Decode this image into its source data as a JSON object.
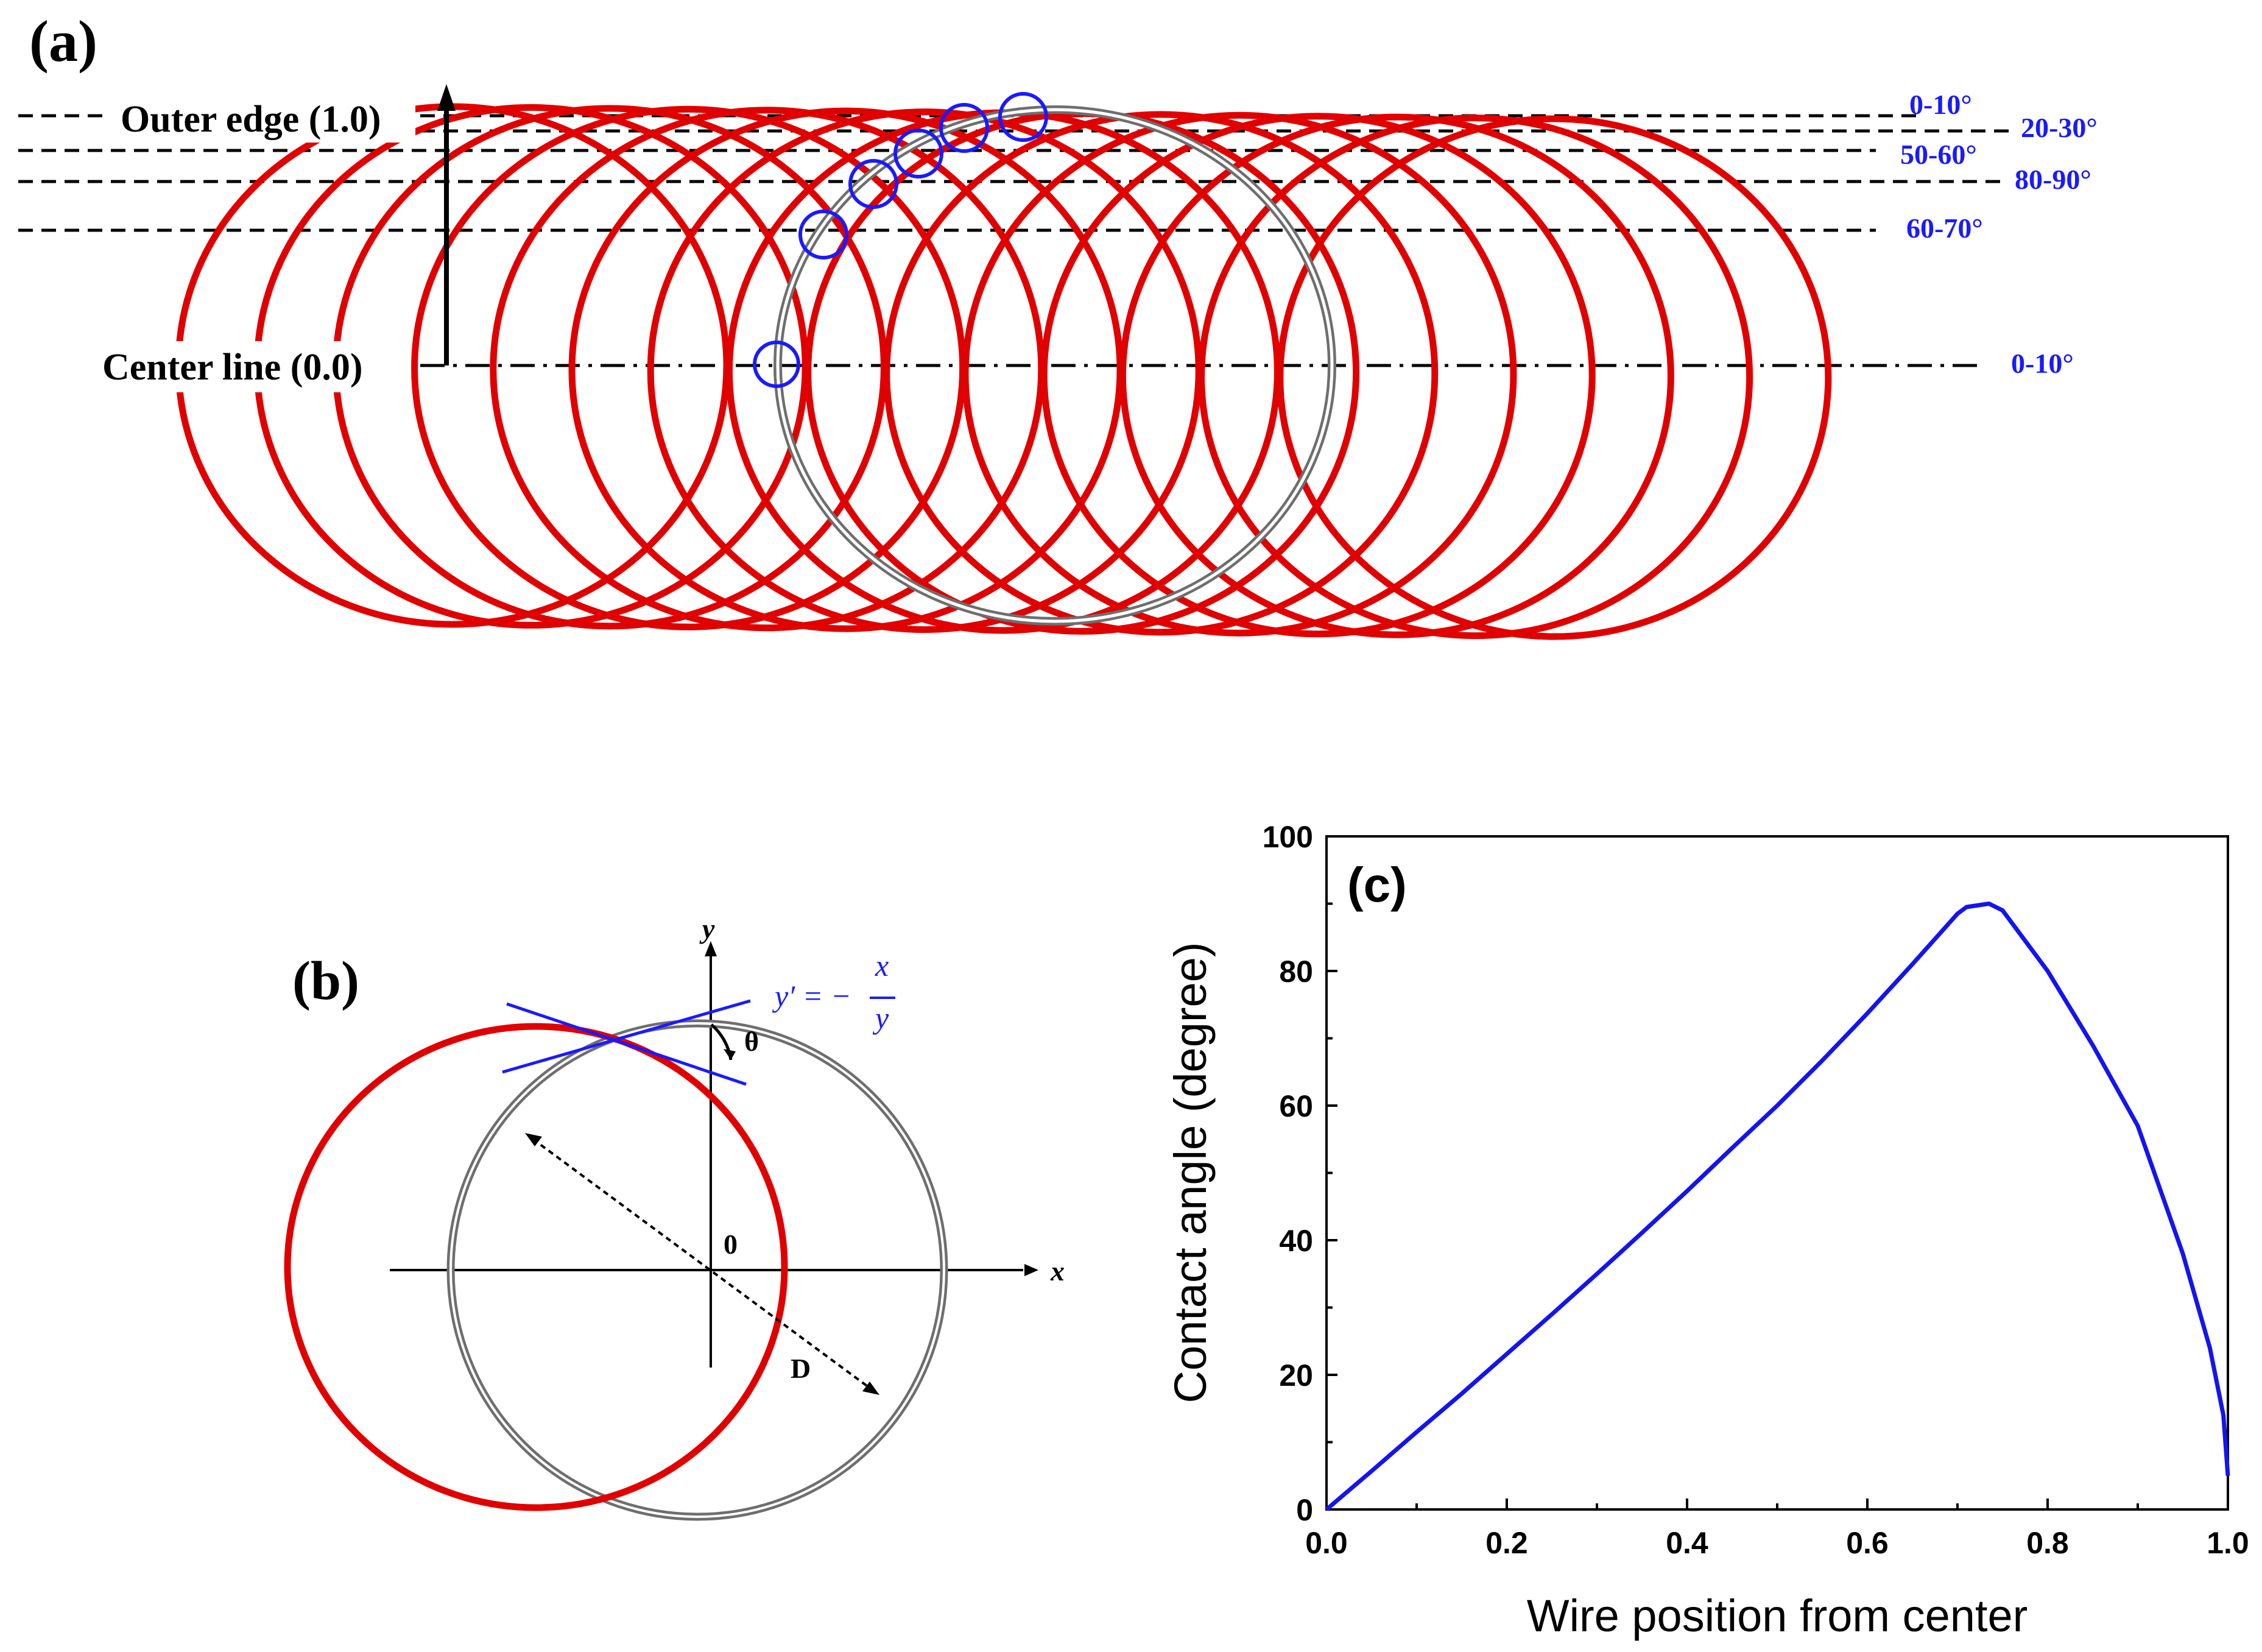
{
  "colors": {
    "ring_red": "#e00000",
    "ring_gray": "#808080",
    "marker_blue": "#1a1aff",
    "label_blue": "#1a1aff",
    "curve_blue": "#1414f0",
    "ink": "#000000"
  },
  "panel_a": {
    "label": "(a)",
    "outer_edge_label": "Outer edge (1.0)",
    "center_line_label": "Center line (0.0)",
    "angle_labels": [
      "0-10°",
      "20-30°",
      "50-60°",
      "80-90°",
      "60-70°",
      "0-10°"
    ],
    "ring_count": 15
  },
  "panel_b": {
    "label": "(b)",
    "y_axis": "y",
    "x_axis": "x",
    "origin": "0",
    "theta": "θ",
    "distance": "D",
    "eq_lhs": "y′ = −",
    "eq_num": "x",
    "eq_den": "y"
  },
  "panel_c": {
    "label": "(c)"
  },
  "chart_data": {
    "type": "line",
    "title": "",
    "xlabel": "Wire position from center",
    "ylabel": "Contact angle (degree)",
    "xlim": [
      0.0,
      1.0
    ],
    "ylim": [
      0,
      100
    ],
    "xticks": [
      "0.0",
      "0.2",
      "0.4",
      "0.6",
      "0.8",
      "1.0"
    ],
    "yticks": [
      "0",
      "20",
      "40",
      "60",
      "80",
      "100"
    ],
    "series": [
      {
        "name": "contact angle",
        "x": [
          0.0,
          0.05,
          0.1,
          0.15,
          0.2,
          0.25,
          0.3,
          0.35,
          0.4,
          0.45,
          0.5,
          0.55,
          0.6,
          0.65,
          0.7,
          0.71,
          0.735,
          0.75,
          0.8,
          0.85,
          0.9,
          0.95,
          0.98,
          0.995,
          1.0
        ],
        "y": [
          0,
          5.7,
          11.5,
          17.2,
          23.1,
          29.0,
          35.0,
          41.1,
          47.3,
          53.7,
          60.0,
          66.7,
          73.7,
          81.0,
          88.5,
          89.5,
          90.0,
          89.0,
          80.0,
          69.0,
          57.0,
          38.0,
          24.0,
          14.0,
          5.0
        ]
      }
    ]
  }
}
